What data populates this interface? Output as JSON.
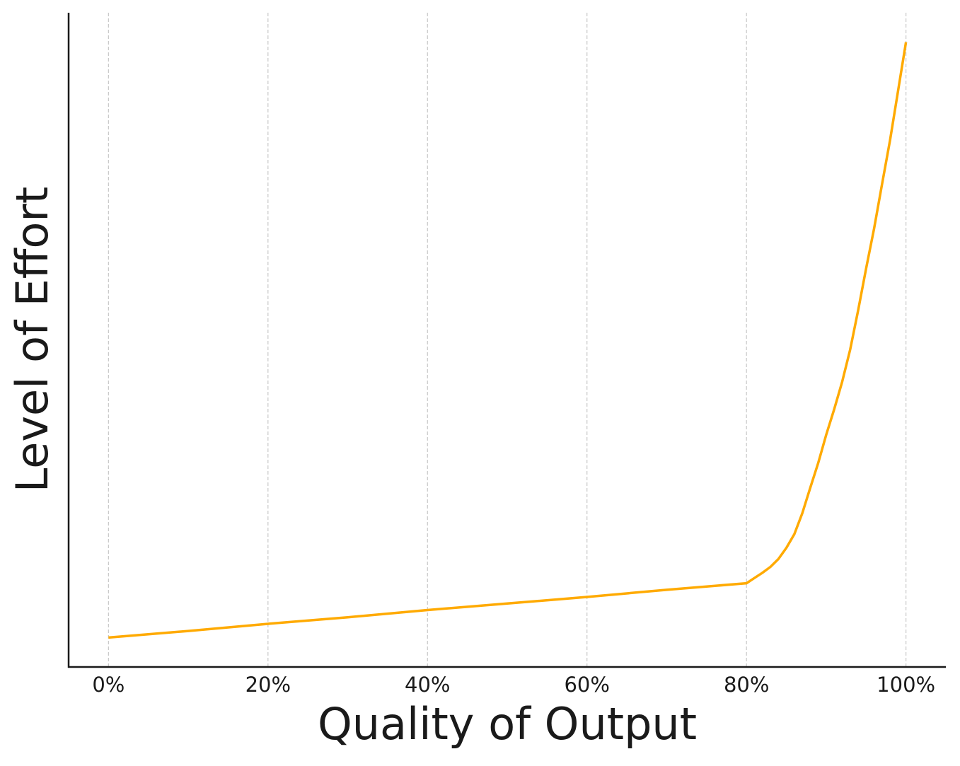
{
  "chart_data": {
    "type": "line",
    "x_label": "Quality of Output",
    "y_label": "Level of Effort",
    "x": [
      0,
      10,
      20,
      30,
      40,
      50,
      60,
      70,
      80,
      81,
      82,
      83,
      84,
      85,
      86,
      87,
      88,
      89,
      90,
      91,
      92,
      93,
      94,
      95,
      96,
      97,
      98,
      99,
      100
    ],
    "series": [
      {
        "color": "#ffaa00",
        "values": [
          4.5,
          5.5,
          6.6,
          7.6,
          8.7,
          9.7,
          10.7,
          11.8,
          12.8,
          13.6,
          14.4,
          15.3,
          16.5,
          18.2,
          20.3,
          23.5,
          27.4,
          31.2,
          35.5,
          39.4,
          43.6,
          48.5,
          54.5,
          60.9,
          67,
          73.8,
          80.5,
          88,
          95.5
        ]
      }
    ],
    "xlim": [
      -5,
      105
    ],
    "ylim": [
      0,
      100
    ],
    "xticks": [
      {
        "value": 0,
        "label": "0%"
      },
      {
        "value": 20,
        "label": "20%"
      },
      {
        "value": 40,
        "label": "40%"
      },
      {
        "value": 60,
        "label": "60%"
      },
      {
        "value": 80,
        "label": "80%"
      },
      {
        "value": 100,
        "label": "100%"
      }
    ],
    "grid": true
  }
}
